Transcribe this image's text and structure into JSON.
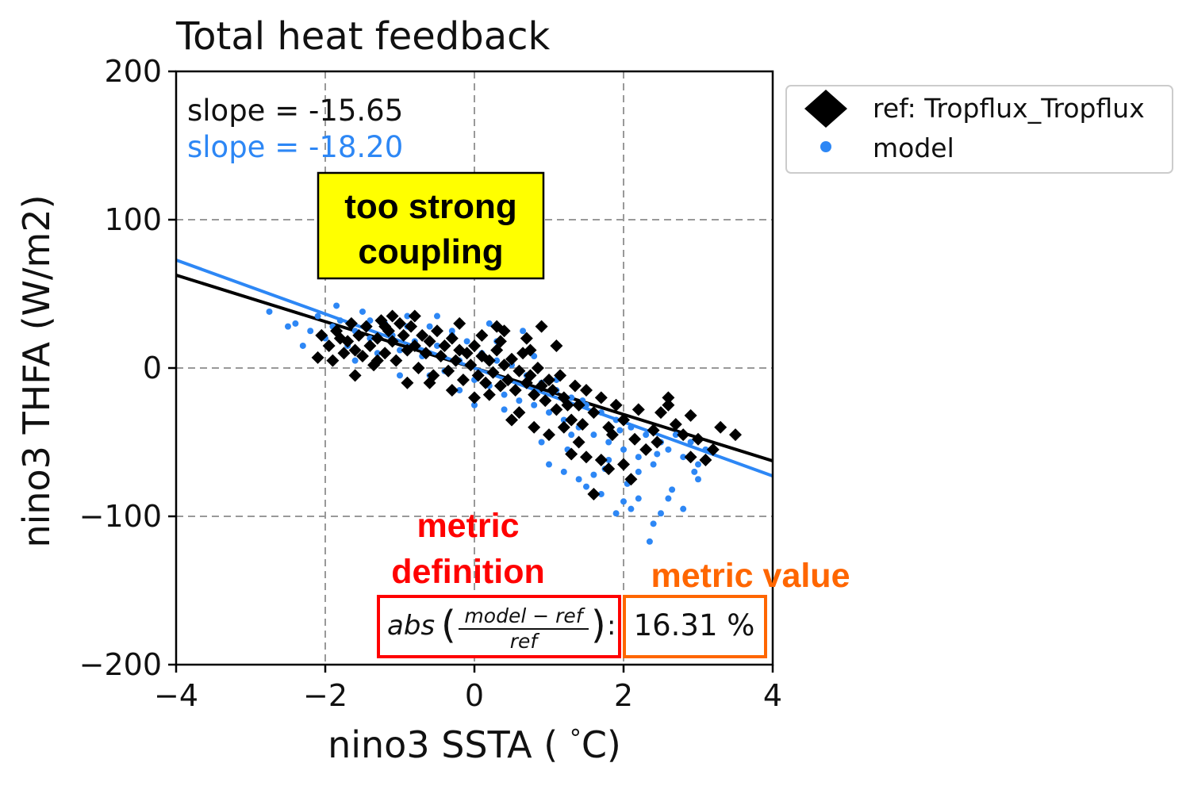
{
  "chart_data": {
    "type": "scatter",
    "title": "Total heat feedback",
    "xlabel": "nino3 SSTA (°C)",
    "xlabel_parts": {
      "pre": "nino3 SSTA ( ",
      "deg": "°",
      "post": "C)"
    },
    "ylabel": "nino3 THFA (W/m2)",
    "xlim": [
      -4,
      4
    ],
    "ylim": [
      -200,
      200
    ],
    "xticks": [
      -4,
      -2,
      0,
      2,
      4
    ],
    "yticks": [
      -200,
      -100,
      0,
      100,
      200
    ],
    "xtick_labels": [
      "−4",
      "−2",
      "0",
      "2",
      "4"
    ],
    "ytick_labels": [
      "−200",
      "−100",
      "0",
      "100",
      "200"
    ],
    "grid": true,
    "legend_position": "outside-top-right",
    "series": [
      {
        "name": "ref: Tropflux_Tropflux",
        "marker": "diamond",
        "color": "#000000",
        "slope": -15.65,
        "slope_label": "slope = -15.65",
        "fit_line": [
          [
            -4,
            62.6
          ],
          [
            4,
            -62.6
          ]
        ],
        "points": [
          [
            -2.1,
            7
          ],
          [
            -2.05,
            22
          ],
          [
            -1.95,
            15
          ],
          [
            -1.9,
            5
          ],
          [
            -1.85,
            25
          ],
          [
            -1.8,
            20
          ],
          [
            -1.75,
            10
          ],
          [
            -1.7,
            18
          ],
          [
            -1.65,
            30
          ],
          [
            -1.6,
            12
          ],
          [
            -1.55,
            22
          ],
          [
            -1.5,
            8
          ],
          [
            -1.45,
            28
          ],
          [
            -1.4,
            15
          ],
          [
            -1.35,
            2
          ],
          [
            -1.3,
            20
          ],
          [
            -1.25,
            32
          ],
          [
            -1.2,
            10
          ],
          [
            -1.15,
            25
          ],
          [
            -1.1,
            18
          ],
          [
            -1.05,
            5
          ],
          [
            -1.0,
            30
          ],
          [
            -0.95,
            22
          ],
          [
            -0.9,
            12
          ],
          [
            -0.85,
            28
          ],
          [
            -0.8,
            15
          ],
          [
            -0.75,
            0
          ],
          [
            -0.7,
            22
          ],
          [
            -0.65,
            10
          ],
          [
            -0.6,
            18
          ],
          [
            -0.55,
            -5
          ],
          [
            -0.5,
            25
          ],
          [
            -0.45,
            8
          ],
          [
            -0.4,
            15
          ],
          [
            -0.35,
            -2
          ],
          [
            -0.3,
            20
          ],
          [
            -0.25,
            5
          ],
          [
            -0.2,
            12
          ],
          [
            -0.15,
            -8
          ],
          [
            -0.1,
            10
          ],
          [
            -0.05,
            2
          ],
          [
            0.0,
            15
          ],
          [
            0.05,
            -5
          ],
          [
            0.1,
            8
          ],
          [
            0.15,
            -10
          ],
          [
            0.2,
            5
          ],
          [
            0.25,
            -3
          ],
          [
            0.3,
            12
          ],
          [
            0.35,
            -12
          ],
          [
            0.4,
            2
          ],
          [
            0.45,
            -8
          ],
          [
            0.5,
            6
          ],
          [
            0.55,
            -15
          ],
          [
            0.6,
            -2
          ],
          [
            0.65,
            10
          ],
          [
            0.7,
            -10
          ],
          [
            0.75,
            -5
          ],
          [
            0.8,
            -18
          ],
          [
            0.85,
            0
          ],
          [
            0.9,
            -12
          ],
          [
            0.95,
            -22
          ],
          [
            1.0,
            -8
          ],
          [
            1.05,
            -15
          ],
          [
            1.1,
            -28
          ],
          [
            1.15,
            -5
          ],
          [
            1.2,
            -20
          ],
          [
            1.3,
            -35
          ],
          [
            1.35,
            -12
          ],
          [
            1.4,
            -25
          ],
          [
            1.5,
            -15
          ],
          [
            1.6,
            -30
          ],
          [
            1.7,
            -20
          ],
          [
            1.8,
            -40
          ],
          [
            1.9,
            -25
          ],
          [
            2.0,
            -35
          ],
          [
            2.2,
            -28
          ],
          [
            2.4,
            -42
          ],
          [
            2.5,
            -30
          ],
          [
            2.6,
            -20
          ],
          [
            2.7,
            -38
          ],
          [
            2.8,
            -45
          ],
          [
            2.9,
            -32
          ],
          [
            3.0,
            -48
          ],
          [
            3.2,
            -55
          ],
          [
            3.3,
            -40
          ],
          [
            3.5,
            -45
          ],
          [
            0.4,
            25
          ],
          [
            0.9,
            28
          ],
          [
            1.1,
            15
          ],
          [
            -0.9,
            -10
          ],
          [
            -1.1,
            35
          ],
          [
            0.2,
            -18
          ],
          [
            0.6,
            -30
          ],
          [
            1.2,
            -40
          ],
          [
            1.3,
            -58
          ],
          [
            1.5,
            -60
          ],
          [
            2.1,
            -75
          ],
          [
            1.7,
            -62
          ],
          [
            1.8,
            -68
          ],
          [
            2.3,
            -55
          ],
          [
            2.6,
            -25
          ],
          [
            2.9,
            -60
          ],
          [
            3.1,
            -62
          ],
          [
            0.0,
            -20
          ],
          [
            -0.3,
            -15
          ],
          [
            -0.6,
            -10
          ],
          [
            -1.3,
            5
          ],
          [
            -1.6,
            -5
          ],
          [
            0.7,
            20
          ],
          [
            0.3,
            28
          ],
          [
            1.0,
            -45
          ],
          [
            0.8,
            -40
          ],
          [
            1.4,
            -50
          ],
          [
            2.0,
            -65
          ],
          [
            1.6,
            -85
          ],
          [
            0.5,
            -35
          ],
          [
            -0.2,
            30
          ],
          [
            -0.8,
            35
          ],
          [
            -1.2,
            28
          ],
          [
            0.1,
            22
          ],
          [
            0.35,
            18
          ],
          [
            0.75,
            12
          ],
          [
            1.25,
            -25
          ],
          [
            1.45,
            -38
          ],
          [
            1.85,
            -45
          ],
          [
            2.15,
            -48
          ],
          [
            2.45,
            -50
          ]
        ]
      },
      {
        "name": "model",
        "marker": "circle",
        "color": "#2d87f5",
        "slope": -18.2,
        "slope_label": "slope = -18.20",
        "fit_line": [
          [
            -4,
            72.8
          ],
          [
            4,
            -72.8
          ]
        ],
        "points": [
          [
            -2.75,
            38
          ],
          [
            -2.4,
            30
          ],
          [
            -2.2,
            25
          ],
          [
            -2.1,
            35
          ],
          [
            -2.0,
            20
          ],
          [
            -1.9,
            28
          ],
          [
            -1.8,
            32
          ],
          [
            -1.7,
            15
          ],
          [
            -1.6,
            25
          ],
          [
            -1.5,
            38
          ],
          [
            -1.4,
            20
          ],
          [
            -1.3,
            10
          ],
          [
            -1.2,
            30
          ],
          [
            -1.1,
            22
          ],
          [
            -1.0,
            12
          ],
          [
            -0.9,
            35
          ],
          [
            -0.8,
            18
          ],
          [
            -0.7,
            8
          ],
          [
            -0.6,
            28
          ],
          [
            -0.5,
            15
          ],
          [
            -0.4,
            -2
          ],
          [
            -0.3,
            25
          ],
          [
            -0.2,
            5
          ],
          [
            -0.1,
            18
          ],
          [
            0.0,
            -8
          ],
          [
            0.1,
            10
          ],
          [
            0.2,
            -12
          ],
          [
            0.3,
            5
          ],
          [
            0.4,
            -18
          ],
          [
            0.5,
            2
          ],
          [
            0.6,
            -22
          ],
          [
            0.7,
            -5
          ],
          [
            0.8,
            -25
          ],
          [
            0.9,
            -10
          ],
          [
            1.0,
            -30
          ],
          [
            1.1,
            -15
          ],
          [
            1.2,
            -35
          ],
          [
            1.3,
            -20
          ],
          [
            1.4,
            -40
          ],
          [
            1.5,
            -25
          ],
          [
            1.6,
            -45
          ],
          [
            1.7,
            -30
          ],
          [
            1.8,
            -50
          ],
          [
            1.9,
            -35
          ],
          [
            2.0,
            -55
          ],
          [
            2.1,
            -40
          ],
          [
            2.2,
            -60
          ],
          [
            2.3,
            -45
          ],
          [
            2.4,
            -65
          ],
          [
            2.5,
            -50
          ],
          [
            2.6,
            -55
          ],
          [
            2.7,
            -45
          ],
          [
            2.8,
            -60
          ],
          [
            2.9,
            -50
          ],
          [
            3.0,
            -65
          ],
          [
            3.1,
            -55
          ],
          [
            1.4,
            -75
          ],
          [
            1.5,
            -80
          ],
          [
            1.6,
            -72
          ],
          [
            1.7,
            -85
          ],
          [
            2.0,
            -90
          ],
          [
            2.1,
            -95
          ],
          [
            2.2,
            -88
          ],
          [
            2.4,
            -105
          ],
          [
            2.8,
            -95
          ],
          [
            1.9,
            -98
          ],
          [
            1.2,
            -70
          ],
          [
            2.35,
            -117
          ],
          [
            2.5,
            -98
          ],
          [
            1.0,
            -65
          ],
          [
            -2.3,
            15
          ],
          [
            -1.6,
            5
          ],
          [
            -0.6,
            -5
          ],
          [
            0.0,
            -25
          ],
          [
            0.5,
            -35
          ],
          [
            0.9,
            -50
          ],
          [
            1.25,
            -55
          ],
          [
            1.75,
            -68
          ],
          [
            2.05,
            -78
          ],
          [
            2.65,
            -82
          ],
          [
            -1.4,
            32
          ],
          [
            -0.9,
            28
          ],
          [
            -0.3,
            22
          ],
          [
            0.3,
            18
          ],
          [
            0.8,
            8
          ],
          [
            1.1,
            -8
          ],
          [
            1.45,
            -22
          ],
          [
            1.95,
            -42
          ],
          [
            2.45,
            -58
          ],
          [
            2.95,
            -70
          ],
          [
            -2.5,
            28
          ],
          [
            -1.85,
            42
          ],
          [
            -0.5,
            35
          ],
          [
            0.2,
            30
          ],
          [
            0.65,
            25
          ],
          [
            -1.0,
            -5
          ],
          [
            -0.2,
            -15
          ],
          [
            0.4,
            -28
          ],
          [
            1.3,
            -45
          ],
          [
            1.8,
            -62
          ],
          [
            2.2,
            -70
          ],
          [
            3.0,
            -75
          ],
          [
            2.6,
            -88
          ]
        ]
      }
    ]
  },
  "annotations": {
    "callout": [
      "too strong",
      "coupling"
    ],
    "callout_bg": "#ffff00",
    "metric_definition_label": [
      "metric",
      "definition"
    ],
    "metric_definition_color": "#ff0000",
    "metric_value_label": "metric value",
    "metric_value_color": "#ff6600",
    "formula": {
      "abs": "abs",
      "numerator": "model − ref",
      "denominator": "ref"
    },
    "metric_value": "16.31 %"
  }
}
